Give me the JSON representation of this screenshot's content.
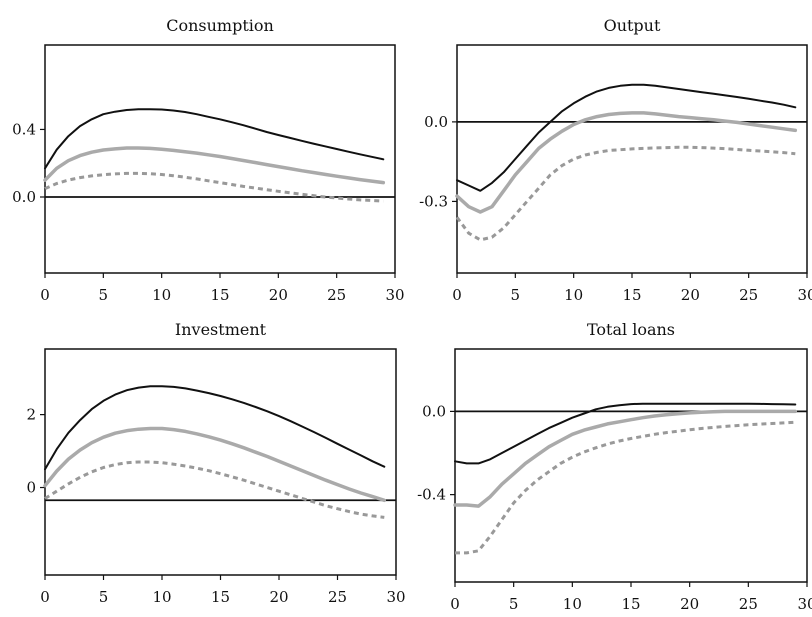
{
  "colors": {
    "black": "#111111",
    "gray": "#aaaaaa",
    "dashed": "#999999",
    "axis": "#111111"
  },
  "chart_data": [
    {
      "type": "line",
      "title": "Consumption",
      "xlim": [
        0,
        30
      ],
      "ylim": [
        -0.45,
        0.9
      ],
      "xticks": [
        0,
        5,
        10,
        15,
        20,
        25,
        30
      ],
      "yticks": [
        0.0,
        0.4
      ],
      "ytick_labels": [
        "0.0",
        "0.4"
      ],
      "zero_line": true,
      "series": [
        {
          "style": "solid-black",
          "x": [
            0,
            1,
            2,
            3,
            4,
            5,
            6,
            7,
            8,
            9,
            10,
            11,
            12,
            13,
            14,
            15,
            16,
            17,
            18,
            19,
            20,
            21,
            22,
            23,
            24,
            25,
            26,
            27,
            28,
            29
          ],
          "y": [
            0.17,
            0.28,
            0.36,
            0.42,
            0.46,
            0.49,
            0.505,
            0.515,
            0.52,
            0.52,
            0.518,
            0.512,
            0.503,
            0.49,
            0.475,
            0.46,
            0.443,
            0.425,
            0.405,
            0.385,
            0.367,
            0.35,
            0.333,
            0.316,
            0.3,
            0.284,
            0.268,
            0.253,
            0.238,
            0.223
          ]
        },
        {
          "style": "solid-gray",
          "x": [
            0,
            1,
            2,
            3,
            4,
            5,
            6,
            7,
            8,
            9,
            10,
            11,
            12,
            13,
            14,
            15,
            16,
            17,
            18,
            19,
            20,
            21,
            22,
            23,
            24,
            25,
            26,
            27,
            28,
            29
          ],
          "y": [
            0.1,
            0.17,
            0.215,
            0.245,
            0.265,
            0.278,
            0.285,
            0.29,
            0.29,
            0.288,
            0.283,
            0.276,
            0.268,
            0.26,
            0.25,
            0.24,
            0.228,
            0.216,
            0.204,
            0.192,
            0.18,
            0.168,
            0.156,
            0.145,
            0.134,
            0.123,
            0.113,
            0.103,
            0.094,
            0.085
          ]
        },
        {
          "style": "dashed-gray",
          "x": [
            0,
            1,
            2,
            3,
            4,
            5,
            6,
            7,
            8,
            9,
            10,
            11,
            12,
            13,
            14,
            15,
            16,
            17,
            18,
            19,
            20,
            21,
            22,
            23,
            24,
            25,
            26,
            27,
            28,
            29
          ],
          "y": [
            0.05,
            0.08,
            0.1,
            0.115,
            0.125,
            0.132,
            0.137,
            0.14,
            0.14,
            0.138,
            0.133,
            0.126,
            0.117,
            0.107,
            0.096,
            0.085,
            0.074,
            0.063,
            0.053,
            0.043,
            0.034,
            0.025,
            0.016,
            0.008,
            0.0,
            -0.006,
            -0.012,
            -0.017,
            -0.021,
            -0.024
          ]
        }
      ]
    },
    {
      "type": "line",
      "title": "Output",
      "xlim": [
        0,
        30
      ],
      "ylim": [
        -0.57,
        0.29
      ],
      "xticks": [
        0,
        5,
        10,
        15,
        20,
        25,
        30
      ],
      "yticks": [
        0.0,
        -0.3
      ],
      "ytick_labels": [
        "0.0",
        "-0.3"
      ],
      "zero_line": true,
      "series": [
        {
          "style": "solid-black",
          "x": [
            0,
            1,
            2,
            3,
            4,
            5,
            6,
            7,
            8,
            9,
            10,
            11,
            12,
            13,
            14,
            15,
            16,
            17,
            18,
            19,
            20,
            21,
            22,
            23,
            24,
            25,
            26,
            27,
            28,
            29
          ],
          "y": [
            -0.22,
            -0.24,
            -0.26,
            -0.23,
            -0.19,
            -0.14,
            -0.09,
            -0.04,
            0.0,
            0.04,
            0.07,
            0.095,
            0.115,
            0.128,
            0.136,
            0.14,
            0.14,
            0.136,
            0.13,
            0.124,
            0.118,
            0.112,
            0.106,
            0.1,
            0.094,
            0.087,
            0.08,
            0.073,
            0.065,
            0.055
          ]
        },
        {
          "style": "solid-gray",
          "x": [
            0,
            1,
            2,
            3,
            4,
            5,
            6,
            7,
            8,
            9,
            10,
            11,
            12,
            13,
            14,
            15,
            16,
            17,
            18,
            19,
            20,
            21,
            22,
            23,
            24,
            25,
            26,
            27,
            28,
            29
          ],
          "y": [
            -0.28,
            -0.32,
            -0.34,
            -0.32,
            -0.26,
            -0.2,
            -0.15,
            -0.1,
            -0.065,
            -0.035,
            -0.01,
            0.008,
            0.02,
            0.028,
            0.032,
            0.034,
            0.034,
            0.03,
            0.025,
            0.02,
            0.016,
            0.012,
            0.008,
            0.003,
            -0.002,
            -0.008,
            -0.014,
            -0.02,
            -0.026,
            -0.032
          ]
        },
        {
          "style": "dashed-gray",
          "x": [
            0,
            1,
            2,
            3,
            4,
            5,
            6,
            7,
            8,
            9,
            10,
            11,
            12,
            13,
            14,
            15,
            16,
            17,
            18,
            19,
            20,
            21,
            22,
            23,
            24,
            25,
            26,
            27,
            28,
            29
          ],
          "y": [
            -0.36,
            -0.42,
            -0.445,
            -0.435,
            -0.4,
            -0.35,
            -0.3,
            -0.25,
            -0.2,
            -0.165,
            -0.14,
            -0.125,
            -0.115,
            -0.108,
            -0.105,
            -0.102,
            -0.1,
            -0.098,
            -0.097,
            -0.096,
            -0.096,
            -0.097,
            -0.099,
            -0.101,
            -0.104,
            -0.107,
            -0.11,
            -0.113,
            -0.116,
            -0.12
          ]
        }
      ]
    },
    {
      "type": "line",
      "title": "Investment",
      "xlim": [
        0,
        30
      ],
      "ylim": [
        -2.4,
        3.8
      ],
      "xticks": [
        0,
        5,
        10,
        15,
        20,
        25,
        30
      ],
      "yticks": [
        2,
        0
      ],
      "ytick_labels": [
        "2",
        "0"
      ],
      "zero_line": true,
      "zero_line_y": -0.35,
      "series": [
        {
          "style": "solid-black",
          "x": [
            0,
            1,
            2,
            3,
            4,
            5,
            6,
            7,
            8,
            9,
            10,
            11,
            12,
            13,
            14,
            15,
            16,
            17,
            18,
            19,
            20,
            21,
            22,
            23,
            24,
            25,
            26,
            27,
            28,
            29
          ],
          "y": [
            0.5,
            1.05,
            1.5,
            1.85,
            2.15,
            2.38,
            2.55,
            2.67,
            2.74,
            2.78,
            2.78,
            2.76,
            2.72,
            2.66,
            2.59,
            2.51,
            2.42,
            2.32,
            2.21,
            2.09,
            1.96,
            1.82,
            1.67,
            1.52,
            1.36,
            1.2,
            1.04,
            0.88,
            0.72,
            0.57
          ]
        },
        {
          "style": "solid-gray",
          "x": [
            0,
            1,
            2,
            3,
            4,
            5,
            6,
            7,
            8,
            9,
            10,
            11,
            12,
            13,
            14,
            15,
            16,
            17,
            18,
            19,
            20,
            21,
            22,
            23,
            24,
            25,
            26,
            27,
            28,
            29
          ],
          "y": [
            0.05,
            0.45,
            0.78,
            1.03,
            1.23,
            1.38,
            1.49,
            1.56,
            1.6,
            1.62,
            1.62,
            1.59,
            1.54,
            1.47,
            1.39,
            1.3,
            1.2,
            1.09,
            0.97,
            0.85,
            0.72,
            0.59,
            0.46,
            0.33,
            0.2,
            0.08,
            -0.04,
            -0.15,
            -0.25,
            -0.35
          ]
        },
        {
          "style": "dashed-gray",
          "x": [
            0,
            1,
            2,
            3,
            4,
            5,
            6,
            7,
            8,
            9,
            10,
            11,
            12,
            13,
            14,
            15,
            16,
            17,
            18,
            19,
            20,
            21,
            22,
            23,
            24,
            25,
            26,
            27,
            28,
            29
          ],
          "y": [
            -0.3,
            -0.1,
            0.1,
            0.28,
            0.43,
            0.55,
            0.63,
            0.68,
            0.7,
            0.7,
            0.68,
            0.64,
            0.59,
            0.53,
            0.46,
            0.38,
            0.29,
            0.2,
            0.1,
            0.0,
            -0.1,
            -0.2,
            -0.3,
            -0.4,
            -0.5,
            -0.58,
            -0.66,
            -0.73,
            -0.78,
            -0.82
          ]
        }
      ]
    },
    {
      "type": "line",
      "title": "Total loans",
      "xlim": [
        0,
        30
      ],
      "ylim": [
        -0.82,
        0.3
      ],
      "xticks": [
        0,
        5,
        10,
        15,
        20,
        25,
        30
      ],
      "yticks": [
        0.0,
        -0.4
      ],
      "ytick_labels": [
        "0.0",
        "-0.4"
      ],
      "zero_line": true,
      "series": [
        {
          "style": "solid-black",
          "x": [
            0,
            1,
            2,
            3,
            4,
            5,
            6,
            7,
            8,
            9,
            10,
            11,
            12,
            13,
            14,
            15,
            16,
            17,
            18,
            19,
            20,
            21,
            22,
            23,
            24,
            25,
            26,
            27,
            28,
            29
          ],
          "y": [
            -0.24,
            -0.25,
            -0.25,
            -0.23,
            -0.2,
            -0.17,
            -0.14,
            -0.11,
            -0.08,
            -0.055,
            -0.03,
            -0.01,
            0.01,
            0.022,
            0.03,
            0.035,
            0.037,
            0.037,
            0.037,
            0.037,
            0.037,
            0.037,
            0.037,
            0.037,
            0.037,
            0.037,
            0.036,
            0.035,
            0.034,
            0.033
          ]
        },
        {
          "style": "solid-gray",
          "x": [
            0,
            1,
            2,
            3,
            4,
            5,
            6,
            7,
            8,
            9,
            10,
            11,
            12,
            13,
            14,
            15,
            16,
            17,
            18,
            19,
            20,
            21,
            22,
            23,
            24,
            25,
            26,
            27,
            28,
            29
          ],
          "y": [
            -0.45,
            -0.45,
            -0.455,
            -0.41,
            -0.35,
            -0.3,
            -0.25,
            -0.21,
            -0.17,
            -0.14,
            -0.11,
            -0.09,
            -0.075,
            -0.06,
            -0.05,
            -0.04,
            -0.03,
            -0.022,
            -0.016,
            -0.011,
            -0.007,
            -0.004,
            -0.002,
            0.0,
            0.0,
            0.0,
            0.0,
            0.0,
            0.0,
            0.0
          ]
        },
        {
          "style": "dashed-gray",
          "x": [
            0,
            1,
            2,
            3,
            4,
            5,
            6,
            7,
            8,
            9,
            10,
            11,
            12,
            13,
            14,
            15,
            16,
            17,
            18,
            19,
            20,
            21,
            22,
            23,
            24,
            25,
            26,
            27,
            28,
            29
          ],
          "y": [
            -0.68,
            -0.68,
            -0.67,
            -0.6,
            -0.52,
            -0.44,
            -0.38,
            -0.33,
            -0.29,
            -0.25,
            -0.22,
            -0.195,
            -0.175,
            -0.157,
            -0.142,
            -0.13,
            -0.12,
            -0.11,
            -0.102,
            -0.095,
            -0.088,
            -0.082,
            -0.077,
            -0.072,
            -0.068,
            -0.064,
            -0.061,
            -0.058,
            -0.055,
            -0.052
          ]
        }
      ]
    }
  ]
}
